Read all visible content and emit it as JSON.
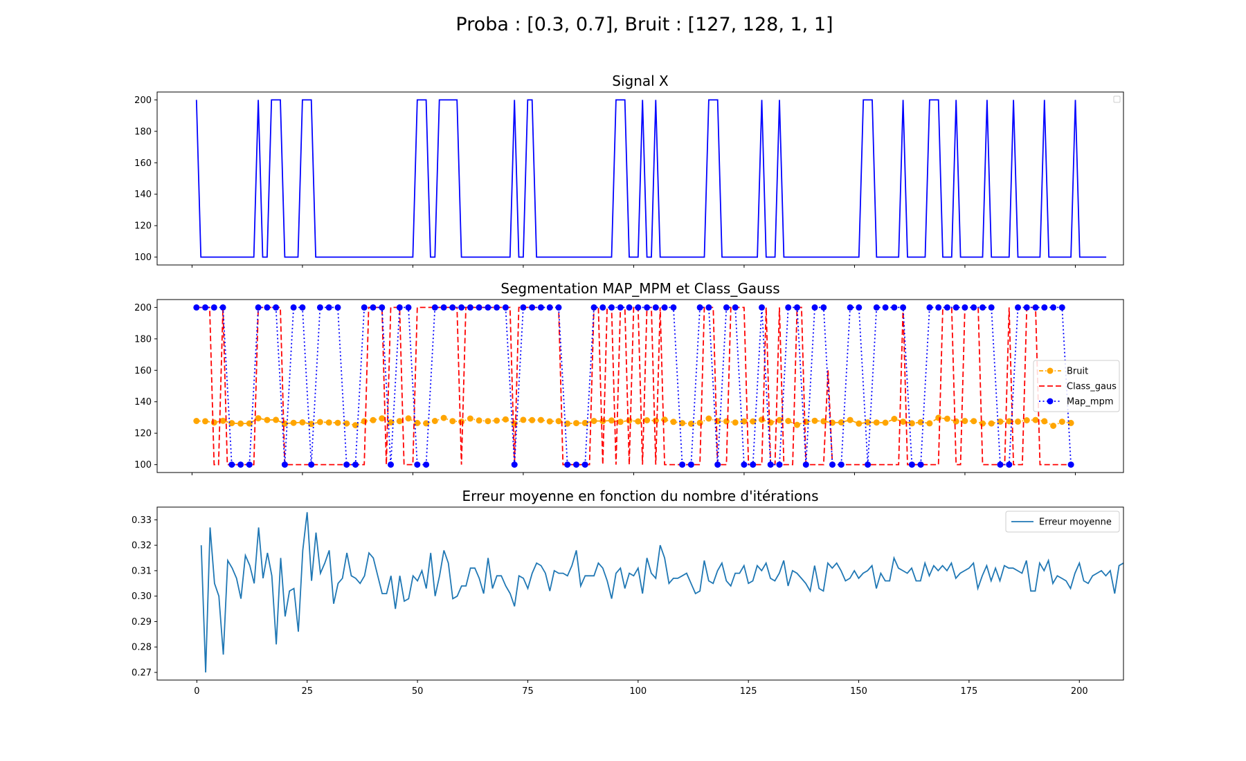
{
  "suptitle": "Proba : [0.3, 0.7], Bruit : [127, 128, 1, 1]",
  "colors": {
    "signal": "#0000ff",
    "bruit": "#ffa500",
    "class_gaus": "#ff0000",
    "map_mpm": "#0000ff",
    "erreur": "#1f77b4"
  },
  "chart_data": [
    {
      "type": "line",
      "title": "Signal X",
      "xlim": [
        -7.9,
        210.9
      ],
      "ylim": [
        95,
        205
      ],
      "yticks": [
        "100",
        "120",
        "140",
        "160",
        "180",
        "200"
      ],
      "legend": {
        "position": "top-right",
        "entries": []
      },
      "series": [
        {
          "name": "",
          "color": "#0000ff",
          "style": "solid",
          "x_start": 1,
          "x_step": 1,
          "values": [
            200,
            100,
            100,
            100,
            100,
            100,
            100,
            100,
            100,
            100,
            100,
            100,
            100,
            100,
            200,
            100,
            100,
            200,
            200,
            200,
            100,
            100,
            100,
            100,
            200,
            200,
            200,
            100,
            100,
            100,
            100,
            100,
            100,
            100,
            100,
            100,
            100,
            100,
            100,
            100,
            100,
            100,
            100,
            100,
            100,
            100,
            100,
            100,
            100,
            100,
            200,
            200,
            200,
            100,
            100,
            200,
            200,
            200,
            200,
            200,
            100,
            100,
            100,
            100,
            100,
            100,
            100,
            100,
            100,
            100,
            100,
            100,
            200,
            100,
            100,
            200,
            200,
            100,
            100,
            100,
            100,
            100,
            100,
            100,
            100,
            100,
            100,
            100,
            100,
            100,
            100,
            100,
            100,
            100,
            100,
            200,
            200,
            200,
            100,
            100,
            100,
            200,
            100,
            100,
            200,
            100,
            100,
            100,
            100,
            100,
            100,
            100,
            100,
            100,
            100,
            100,
            200,
            200,
            200,
            100,
            100,
            100,
            100,
            100,
            100,
            100,
            100,
            100,
            200,
            100,
            100,
            100,
            200,
            100,
            100,
            100,
            100,
            100,
            100,
            100,
            100,
            100,
            100,
            100,
            100,
            100,
            100,
            100,
            100,
            100,
            100,
            200,
            200,
            200,
            100,
            100,
            100,
            100,
            100,
            100,
            200,
            100,
            100,
            100,
            100,
            100,
            200,
            200,
            200,
            100,
            100,
            100,
            200,
            100,
            100,
            100,
            100,
            100,
            100,
            200,
            100,
            100,
            100,
            100,
            100,
            200,
            100,
            100,
            100,
            100,
            100,
            100,
            200,
            100,
            100,
            100,
            100,
            100,
            100,
            200,
            100,
            100,
            100,
            100,
            100,
            100,
            100
          ]
        }
      ]
    },
    {
      "type": "line",
      "title": "Segmentation MAP_MPM et Class_Gauss",
      "xlim": [
        -7.9,
        210.9
      ],
      "ylim": [
        95,
        205
      ],
      "yticks": [
        "100",
        "120",
        "140",
        "160",
        "180",
        "200"
      ],
      "legend": {
        "position": "center-right",
        "entries": [
          "Bruit",
          "Class_gaus",
          "Map_mpm"
        ]
      },
      "series": [
        {
          "name": "Bruit",
          "color": "#ffa500",
          "style": "dashdot",
          "marker": "circle",
          "x_start": 1,
          "x_step": 2,
          "values": [
            127.8,
            127.6,
            126.8,
            127.9,
            126.4,
            126.1,
            126.2,
            129.5,
            128.4,
            128.5,
            126.1,
            126.6,
            126.9,
            125.9,
            127.1,
            126.8,
            126.6,
            126.2,
            125.1,
            127.6,
            128.3,
            129.4,
            126.9,
            127.7,
            129.4,
            126.5,
            126.3,
            127.8,
            129.7,
            127.7,
            127.3,
            129.3,
            128.1,
            127.7,
            128.0,
            128.8,
            126.2,
            128.5,
            128.3,
            128.4,
            127.5,
            127.7,
            126.1,
            126.4,
            126.5,
            127.8,
            127.7,
            128.1,
            127.2,
            128.1,
            127.5,
            128.2,
            128.0,
            128.6,
            127.2,
            126.4,
            126.0,
            126.6,
            129.3,
            127.7,
            127.5,
            126.8,
            127.5,
            127.5,
            128.6,
            126.8,
            128.3,
            127.8,
            125.3,
            127.2,
            127.9,
            127.6,
            126.7,
            126.9,
            128.4,
            126.1,
            126.9,
            126.8,
            126.7,
            129.1,
            127.3,
            126.3,
            127.0,
            126.3,
            129.8,
            129.2,
            127.5,
            127.8,
            127.7,
            126.2,
            126.2,
            127.4,
            127.6,
            127.4,
            128.2,
            128.4,
            127.6,
            124.7,
            127.3,
            126.5
          ]
        },
        {
          "name": "Class_gaus",
          "color": "#ff0000",
          "style": "dashed",
          "marker": "none",
          "x_start": 1,
          "x_step": 1,
          "values": [
            200,
            200,
            200,
            200,
            100,
            100,
            200,
            100,
            100,
            100,
            100,
            100,
            100,
            100,
            200,
            200,
            200,
            200,
            200,
            200,
            100,
            100,
            100,
            100,
            100,
            100,
            100,
            100,
            100,
            100,
            100,
            100,
            100,
            100,
            100,
            100,
            100,
            100,
            100,
            200,
            200,
            200,
            200,
            100,
            200,
            200,
            200,
            100,
            100,
            100,
            200,
            200,
            200,
            200,
            200,
            200,
            200,
            200,
            200,
            200,
            100,
            200,
            200,
            200,
            200,
            200,
            200,
            200,
            200,
            200,
            200,
            200,
            100,
            200,
            200,
            200,
            200,
            200,
            200,
            200,
            200,
            200,
            200,
            100,
            100,
            100,
            100,
            100,
            100,
            100,
            200,
            200,
            100,
            200,
            200,
            100,
            200,
            200,
            100,
            200,
            200,
            100,
            200,
            200,
            100,
            200,
            100,
            100,
            100,
            100,
            100,
            100,
            100,
            100,
            100,
            200,
            200,
            200,
            100,
            100,
            100,
            200,
            200,
            200,
            200,
            100,
            100,
            100,
            100,
            200,
            100,
            100,
            200,
            100,
            100,
            100,
            200,
            200,
            100,
            100,
            100,
            100,
            100,
            160,
            100,
            100,
            100,
            100,
            100,
            100,
            100,
            100,
            100,
            100,
            100,
            100,
            100,
            100,
            100,
            100,
            200,
            100,
            100,
            100,
            100,
            100,
            100,
            100,
            100,
            200,
            200,
            200,
            100,
            100,
            200,
            200,
            200,
            200,
            100,
            100,
            100,
            100,
            100,
            100,
            200,
            100,
            100,
            100,
            200,
            200,
            200,
            100,
            100,
            100,
            100,
            100,
            100,
            100,
            100
          ]
        },
        {
          "name": "Map_mpm",
          "color": "#0000ff",
          "style": "dotted",
          "marker": "circle",
          "x_start": 1,
          "x_step": 2,
          "values": [
            200,
            200,
            200,
            200,
            100,
            100,
            100,
            200,
            200,
            200,
            100,
            200,
            200,
            100,
            200,
            200,
            200,
            100,
            100,
            200,
            200,
            200,
            100,
            200,
            200,
            100,
            100,
            200,
            200,
            200,
            200,
            200,
            200,
            200,
            200,
            200,
            100,
            200,
            200,
            200,
            200,
            200,
            100,
            100,
            100,
            200,
            200,
            200,
            200,
            200,
            200,
            200,
            200,
            200,
            200,
            100,
            100,
            200,
            200,
            100,
            200,
            200,
            100,
            100,
            200,
            100,
            100,
            200,
            200,
            100,
            200,
            200,
            100,
            100,
            200,
            200,
            100,
            200,
            200,
            200,
            200,
            100,
            100,
            200,
            200,
            200,
            200,
            200,
            200,
            200,
            200,
            100,
            100,
            200,
            200,
            200,
            200,
            200,
            200,
            100
          ]
        },
        {
          "name": "",
          "color": "#800080",
          "style": "dashed",
          "marker": "none",
          "x_start": 1,
          "x_step": 1,
          "values": []
        }
      ]
    },
    {
      "type": "line",
      "title": "Erreur moyenne en fonction du nombre d'itérations",
      "xlim": [
        -9,
        210
      ],
      "ylim": [
        0.267,
        0.335
      ],
      "xticks": [
        "0",
        "25",
        "50",
        "75",
        "100",
        "125",
        "150",
        "175",
        "200"
      ],
      "yticks": [
        "0.27",
        "0.28",
        "0.29",
        "0.30",
        "0.31",
        "0.32",
        "0.33"
      ],
      "legend": {
        "position": "top-right",
        "entries": [
          "Erreur moyenne"
        ]
      },
      "series": [
        {
          "name": "Erreur moyenne",
          "color": "#1f77b4",
          "style": "solid",
          "x_start": 1,
          "x_step": 1,
          "values": [
            0.32,
            0.27,
            0.327,
            0.305,
            0.3,
            0.277,
            0.314,
            0.311,
            0.307,
            0.299,
            0.316,
            0.312,
            0.305,
            0.327,
            0.307,
            0.317,
            0.308,
            0.281,
            0.315,
            0.292,
            0.302,
            0.303,
            0.286,
            0.318,
            0.333,
            0.306,
            0.325,
            0.309,
            0.313,
            0.318,
            0.297,
            0.305,
            0.307,
            0.317,
            0.308,
            0.307,
            0.305,
            0.308,
            0.317,
            0.315,
            0.308,
            0.301,
            0.301,
            0.308,
            0.295,
            0.308,
            0.298,
            0.299,
            0.308,
            0.306,
            0.31,
            0.303,
            0.317,
            0.3,
            0.308,
            0.318,
            0.313,
            0.299,
            0.3,
            0.304,
            0.304,
            0.311,
            0.311,
            0.307,
            0.301,
            0.315,
            0.303,
            0.308,
            0.308,
            0.304,
            0.301,
            0.296,
            0.308,
            0.307,
            0.303,
            0.309,
            0.313,
            0.312,
            0.309,
            0.302,
            0.31,
            0.309,
            0.309,
            0.308,
            0.312,
            0.318,
            0.304,
            0.308,
            0.308,
            0.308,
            0.313,
            0.311,
            0.306,
            0.299,
            0.309,
            0.311,
            0.303,
            0.309,
            0.308,
            0.311,
            0.301,
            0.315,
            0.309,
            0.307,
            0.32,
            0.315,
            0.305,
            0.307,
            0.307,
            0.308,
            0.309,
            0.305,
            0.301,
            0.302,
            0.314,
            0.306,
            0.305,
            0.31,
            0.313,
            0.306,
            0.304,
            0.309,
            0.309,
            0.312,
            0.305,
            0.306,
            0.312,
            0.31,
            0.313,
            0.307,
            0.306,
            0.309,
            0.314,
            0.304,
            0.31,
            0.309,
            0.307,
            0.305,
            0.302,
            0.312,
            0.303,
            0.302,
            0.313,
            0.311,
            0.313,
            0.31,
            0.306,
            0.307,
            0.31,
            0.307,
            0.309,
            0.31,
            0.312,
            0.303,
            0.309,
            0.306,
            0.306,
            0.315,
            0.311,
            0.31,
            0.309,
            0.311,
            0.306,
            0.306,
            0.313,
            0.308,
            0.312,
            0.31,
            0.312,
            0.31,
            0.313,
            0.307,
            0.309,
            0.31,
            0.311,
            0.313,
            0.303,
            0.308,
            0.312,
            0.306,
            0.311,
            0.306,
            0.312,
            0.311,
            0.311,
            0.31,
            0.309,
            0.314,
            0.302,
            0.302,
            0.313,
            0.31,
            0.314,
            0.305,
            0.308,
            0.307,
            0.306,
            0.303,
            0.309,
            0.313,
            0.306,
            0.305,
            0.308,
            0.309,
            0.31,
            0.308,
            0.31,
            0.301,
            0.312,
            0.313
          ]
        }
      ]
    }
  ]
}
